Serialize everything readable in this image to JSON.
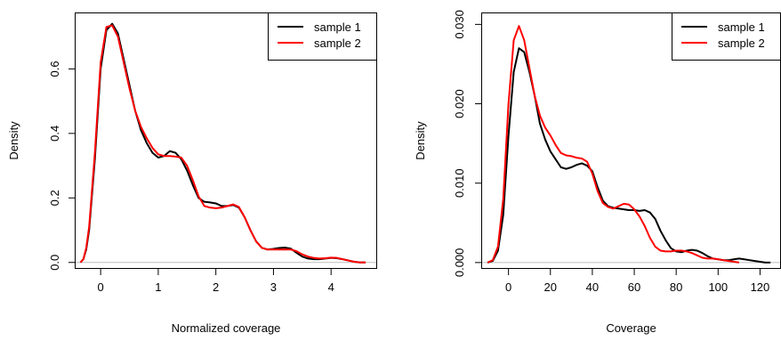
{
  "chart_data": [
    {
      "type": "line",
      "xlabel": "Normalized coverage",
      "ylabel": "Density",
      "xlim": [
        -0.45,
        4.8
      ],
      "ylim": [
        -0.02,
        0.775
      ],
      "xticks": [
        0,
        1,
        2,
        3,
        4
      ],
      "xtick_labels": [
        "0",
        "1",
        "2",
        "3",
        "4"
      ],
      "yticks": [
        0.0,
        0.2,
        0.4,
        0.6
      ],
      "ytick_labels": [
        "0.0",
        "0.2",
        "0.4",
        "0.6"
      ],
      "legend_position": "top-right",
      "baseline": 0,
      "series": [
        {
          "name": "sample 1",
          "color": "#000000",
          "x": [
            -0.35,
            -0.3,
            -0.25,
            -0.2,
            -0.1,
            0,
            0.1,
            0.2,
            0.3,
            0.4,
            0.5,
            0.6,
            0.7,
            0.8,
            0.9,
            1.0,
            1.1,
            1.2,
            1.3,
            1.4,
            1.5,
            1.6,
            1.7,
            1.8,
            1.9,
            2.0,
            2.1,
            2.2,
            2.3,
            2.4,
            2.5,
            2.6,
            2.7,
            2.8,
            2.9,
            3.0,
            3.1,
            3.2,
            3.3,
            3.4,
            3.5,
            3.6,
            3.7,
            3.8,
            3.9,
            4.0,
            4.1,
            4.2,
            4.3,
            4.4,
            4.5,
            4.6
          ],
          "y": [
            0.0,
            0.01,
            0.04,
            0.1,
            0.32,
            0.6,
            0.72,
            0.74,
            0.71,
            0.63,
            0.55,
            0.47,
            0.41,
            0.37,
            0.34,
            0.325,
            0.33,
            0.345,
            0.34,
            0.32,
            0.285,
            0.24,
            0.2,
            0.188,
            0.186,
            0.183,
            0.175,
            0.175,
            0.178,
            0.17,
            0.14,
            0.1,
            0.065,
            0.045,
            0.04,
            0.042,
            0.045,
            0.046,
            0.043,
            0.03,
            0.018,
            0.012,
            0.01,
            0.01,
            0.012,
            0.014,
            0.013,
            0.01,
            0.006,
            0.002,
            0.0,
            0.0
          ]
        },
        {
          "name": "sample 2",
          "color": "#ff0000",
          "x": [
            -0.35,
            -0.3,
            -0.25,
            -0.2,
            -0.1,
            0,
            0.1,
            0.2,
            0.3,
            0.4,
            0.5,
            0.6,
            0.7,
            0.8,
            0.9,
            1.0,
            1.1,
            1.2,
            1.3,
            1.4,
            1.5,
            1.6,
            1.7,
            1.8,
            1.9,
            2.0,
            2.1,
            2.2,
            2.3,
            2.4,
            2.5,
            2.6,
            2.7,
            2.8,
            2.9,
            3.0,
            3.1,
            3.2,
            3.3,
            3.4,
            3.5,
            3.6,
            3.7,
            3.8,
            3.9,
            4.0,
            4.1,
            4.2,
            4.3,
            4.4,
            4.5,
            4.6
          ],
          "y": [
            0.0,
            0.01,
            0.045,
            0.11,
            0.34,
            0.62,
            0.73,
            0.735,
            0.7,
            0.62,
            0.54,
            0.47,
            0.42,
            0.385,
            0.355,
            0.335,
            0.33,
            0.33,
            0.328,
            0.325,
            0.3,
            0.255,
            0.205,
            0.175,
            0.17,
            0.168,
            0.17,
            0.175,
            0.18,
            0.172,
            0.14,
            0.1,
            0.065,
            0.045,
            0.04,
            0.04,
            0.04,
            0.04,
            0.04,
            0.035,
            0.025,
            0.018,
            0.014,
            0.012,
            0.013,
            0.015,
            0.014,
            0.01,
            0.006,
            0.002,
            0.0,
            0.0
          ]
        }
      ]
    },
    {
      "type": "line",
      "xlabel": "Coverage",
      "ylabel": "Density",
      "xlim": [
        -13,
        130
      ],
      "ylim": [
        -0.0008,
        0.0315
      ],
      "xticks": [
        0,
        20,
        40,
        60,
        80,
        100,
        120
      ],
      "xtick_labels": [
        "0",
        "20",
        "40",
        "60",
        "80",
        "100",
        "120"
      ],
      "yticks": [
        0.0,
        0.01,
        0.02,
        0.03
      ],
      "ytick_labels": [
        "0.000",
        "0.010",
        "0.020",
        "0.030"
      ],
      "legend_position": "top-right",
      "baseline": 0,
      "series": [
        {
          "name": "sample 1",
          "color": "#000000",
          "x": [
            -10,
            -7.5,
            -5,
            -2.5,
            0,
            2.5,
            5,
            7.5,
            10,
            12.5,
            15,
            17.5,
            20,
            22.5,
            25,
            27.5,
            30,
            32.5,
            35,
            37.5,
            40,
            42.5,
            45,
            47.5,
            50,
            52.5,
            55,
            57.5,
            60,
            62.5,
            65,
            67.5,
            70,
            72.5,
            75,
            77.5,
            80,
            82.5,
            85,
            87.5,
            90,
            92.5,
            95,
            97.5,
            100,
            102.5,
            105,
            107.5,
            110,
            112.5,
            115,
            117.5,
            120,
            122.5,
            125
          ],
          "y": [
            0.0,
            0.0002,
            0.0015,
            0.006,
            0.016,
            0.024,
            0.027,
            0.0265,
            0.024,
            0.021,
            0.0175,
            0.0155,
            0.014,
            0.013,
            0.012,
            0.0118,
            0.012,
            0.0123,
            0.0125,
            0.0122,
            0.0115,
            0.0095,
            0.0078,
            0.0071,
            0.0069,
            0.0068,
            0.0067,
            0.0066,
            0.0066,
            0.0065,
            0.0066,
            0.0063,
            0.0055,
            0.004,
            0.0028,
            0.0018,
            0.0014,
            0.0013,
            0.0015,
            0.0016,
            0.0015,
            0.0012,
            0.0008,
            0.0005,
            0.0004,
            0.0003,
            0.0003,
            0.0004,
            0.0005,
            0.0004,
            0.0003,
            0.0002,
            0.0001,
            0.0,
            0.0
          ]
        },
        {
          "name": "sample 2",
          "color": "#ff0000",
          "x": [
            -10,
            -7.5,
            -5,
            -2.5,
            0,
            2.5,
            5,
            7.5,
            10,
            12.5,
            15,
            17.5,
            20,
            22.5,
            25,
            27.5,
            30,
            32.5,
            35,
            37.5,
            40,
            42.5,
            45,
            47.5,
            50,
            52.5,
            55,
            57.5,
            60,
            62.5,
            65,
            67.5,
            70,
            72.5,
            75,
            77.5,
            80,
            82.5,
            85,
            87.5,
            90,
            92.5,
            95,
            97.5,
            100,
            102.5,
            105,
            107.5,
            110
          ],
          "y": [
            0.0,
            0.0003,
            0.002,
            0.008,
            0.02,
            0.028,
            0.0298,
            0.028,
            0.0245,
            0.021,
            0.0185,
            0.017,
            0.016,
            0.0148,
            0.0138,
            0.0135,
            0.0134,
            0.0132,
            0.0131,
            0.0127,
            0.0112,
            0.009,
            0.0075,
            0.007,
            0.0068,
            0.0071,
            0.0074,
            0.0073,
            0.0067,
            0.0058,
            0.0046,
            0.0031,
            0.002,
            0.0015,
            0.0014,
            0.0014,
            0.0015,
            0.0015,
            0.0014,
            0.0012,
            0.0009,
            0.0006,
            0.0005,
            0.0005,
            0.0004,
            0.0003,
            0.0002,
            0.0001,
            0.0
          ]
        }
      ]
    }
  ]
}
